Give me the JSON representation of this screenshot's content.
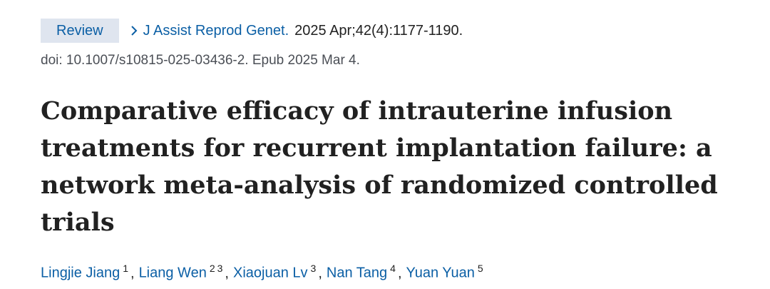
{
  "header": {
    "badge": "Review",
    "journal": "J Assist Reprod Genet.",
    "citation": "2025 Apr;42(4):1177-1190.",
    "doi": "doi: 10.1007/s10815-025-03436-2. Epub 2025 Mar 4."
  },
  "title": "Comparative efficacy of intrauterine infusion treatments for recurrent implantation failure: a network meta-analysis of randomized controlled trials",
  "authors": {
    "separator": ",",
    "list": [
      {
        "name": "Lingjie Jiang",
        "affiliations": [
          "1"
        ]
      },
      {
        "name": "Liang Wen",
        "affiliations": [
          "2",
          "3"
        ]
      },
      {
        "name": "Xiaojuan Lv",
        "affiliations": [
          "3"
        ]
      },
      {
        "name": "Nan Tang",
        "affiliations": [
          "4"
        ]
      },
      {
        "name": "Yuan Yuan",
        "affiliations": [
          "5"
        ]
      }
    ]
  }
}
